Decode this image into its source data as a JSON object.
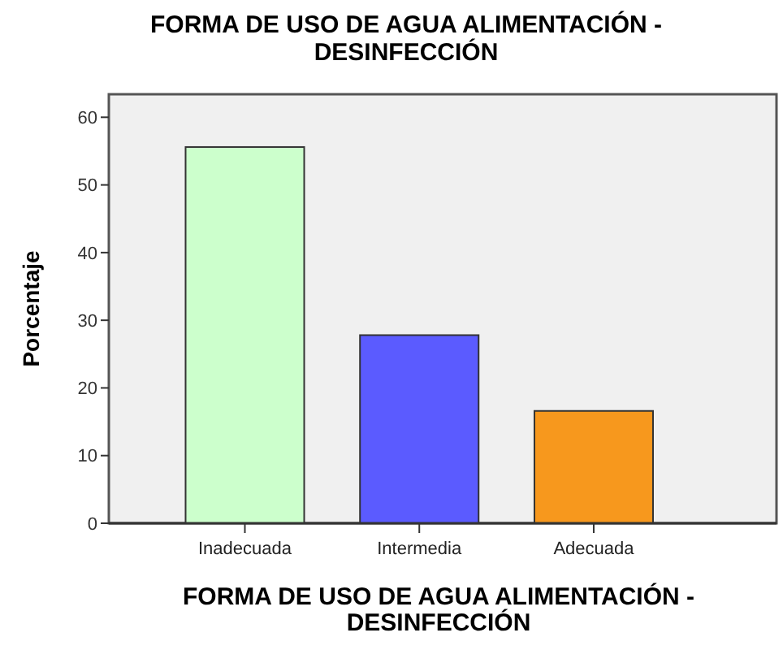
{
  "chart_data": {
    "type": "bar",
    "title": "FORMA DE USO DE AGUA ALIMENTACIÓN - DESINFECCIÓN",
    "xlabel": "FORMA DE USO DE AGUA ALIMENTACIÓN - DESINFECCIÓN",
    "ylabel": "Porcentaje",
    "categories": [
      "Inadecuada",
      "Intermedia",
      "Adecuada"
    ],
    "values": [
      55.6,
      27.8,
      16.6
    ],
    "colors": [
      "#ccffcc",
      "#5b5bff",
      "#f7981d"
    ],
    "ylim": [
      0,
      63.4
    ],
    "yticks": [
      0,
      10,
      20,
      30,
      40,
      50,
      60
    ],
    "grid": false
  }
}
